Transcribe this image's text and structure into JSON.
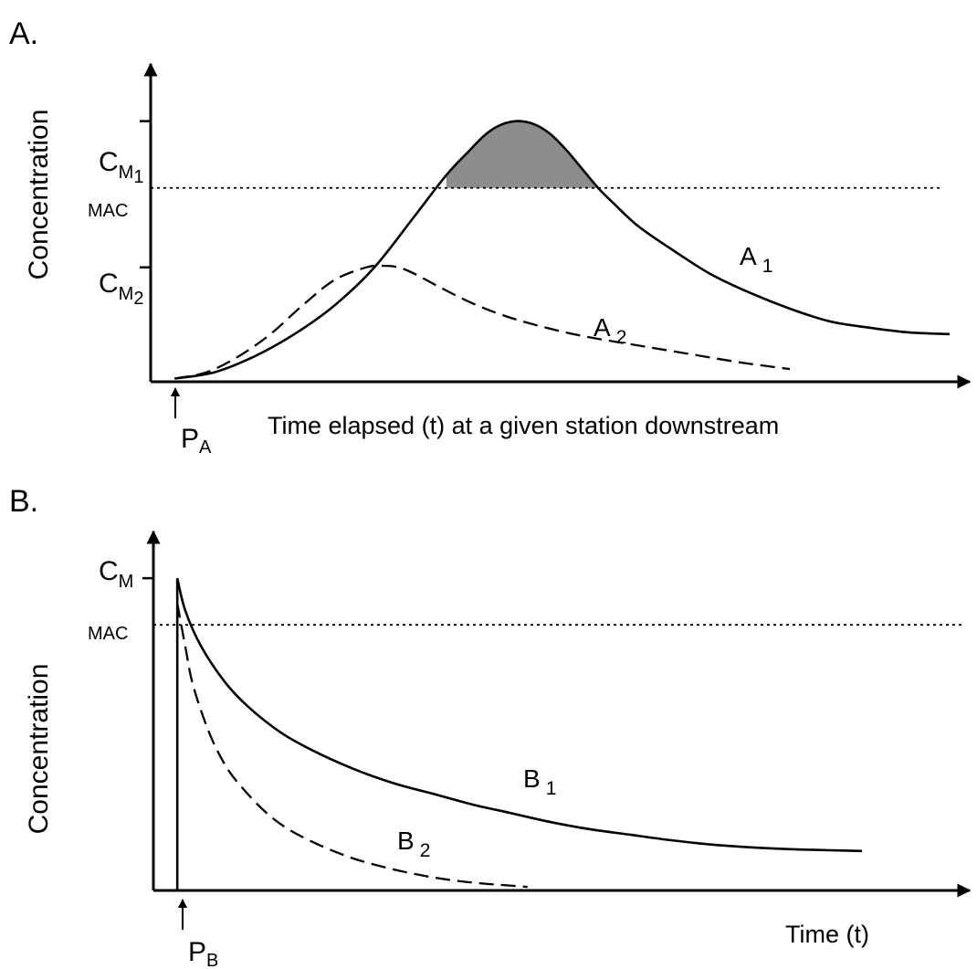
{
  "chart_data": [
    {
      "panel": "A.",
      "type": "line",
      "xlabel": "Time elapsed (t) at a given station downstream",
      "ylabel": "Concentration",
      "y_ticks": [
        {
          "label": "C",
          "sub": "M",
          "subsub": "1",
          "value": 0.82
        },
        {
          "label": "MAC",
          "value": 0.61
        },
        {
          "label": "C",
          "sub": "M",
          "subsub": "2",
          "value": 0.36
        }
      ],
      "release_marker": {
        "label": "P",
        "sub": "A",
        "x": 0.03
      },
      "xlim": [
        0,
        1
      ],
      "ylim": [
        0,
        1
      ],
      "mac_threshold": 0.61,
      "shaded_region": "A1 above MAC",
      "series": [
        {
          "name": "A",
          "name_sub": "1",
          "style": "solid",
          "x": [
            0.03,
            0.08,
            0.13,
            0.18,
            0.23,
            0.28,
            0.33,
            0.37,
            0.4,
            0.42,
            0.44,
            0.46,
            0.48,
            0.5,
            0.52,
            0.54,
            0.56,
            0.58,
            0.61,
            0.65,
            0.7,
            0.75,
            0.8,
            0.85,
            0.9,
            0.95,
            1.0
          ],
          "y": [
            0.01,
            0.03,
            0.08,
            0.15,
            0.24,
            0.36,
            0.52,
            0.65,
            0.73,
            0.78,
            0.81,
            0.82,
            0.81,
            0.78,
            0.73,
            0.67,
            0.61,
            0.56,
            0.49,
            0.42,
            0.34,
            0.28,
            0.23,
            0.19,
            0.17,
            0.155,
            0.15
          ]
        },
        {
          "name": "A",
          "name_sub": "2",
          "style": "dashed",
          "x": [
            0.03,
            0.07,
            0.11,
            0.15,
            0.19,
            0.23,
            0.27,
            0.29,
            0.31,
            0.33,
            0.36,
            0.4,
            0.44,
            0.48,
            0.52,
            0.56,
            0.62,
            0.68,
            0.74,
            0.8
          ],
          "y": [
            0.01,
            0.03,
            0.08,
            0.15,
            0.24,
            0.32,
            0.36,
            0.365,
            0.36,
            0.34,
            0.3,
            0.25,
            0.21,
            0.18,
            0.155,
            0.135,
            0.11,
            0.085,
            0.06,
            0.04
          ]
        }
      ]
    },
    {
      "panel": "B.",
      "type": "line",
      "xlabel": "Time  (t)",
      "ylabel": "Concentration",
      "y_ticks": [
        {
          "label": "C",
          "sub": "M",
          "value": 0.87
        },
        {
          "label": "MAC",
          "value": 0.74
        }
      ],
      "release_marker": {
        "label": "P",
        "sub": "B",
        "x": 0.03
      },
      "xlim": [
        0,
        1
      ],
      "ylim": [
        0,
        1
      ],
      "mac_threshold": 0.74,
      "series": [
        {
          "name": "B",
          "name_sub": "1",
          "style": "solid",
          "x": [
            0.03,
            0.04,
            0.06,
            0.09,
            0.12,
            0.16,
            0.2,
            0.25,
            0.3,
            0.35,
            0.4,
            0.45,
            0.5,
            0.55,
            0.6,
            0.65,
            0.7,
            0.75,
            0.8,
            0.85,
            0.89
          ],
          "y": [
            0.87,
            0.78,
            0.68,
            0.58,
            0.51,
            0.44,
            0.39,
            0.34,
            0.3,
            0.27,
            0.24,
            0.215,
            0.19,
            0.17,
            0.155,
            0.14,
            0.128,
            0.12,
            0.115,
            0.112,
            0.11
          ]
        },
        {
          "name": "B",
          "name_sub": "2",
          "style": "dashed",
          "x": [
            0.03,
            0.04,
            0.05,
            0.07,
            0.09,
            0.11,
            0.14,
            0.17,
            0.21,
            0.25,
            0.29,
            0.33,
            0.37,
            0.41,
            0.44,
            0.47
          ],
          "y": [
            0.8,
            0.68,
            0.57,
            0.44,
            0.35,
            0.29,
            0.22,
            0.17,
            0.125,
            0.09,
            0.065,
            0.045,
            0.03,
            0.02,
            0.015,
            0.01
          ]
        }
      ]
    }
  ]
}
